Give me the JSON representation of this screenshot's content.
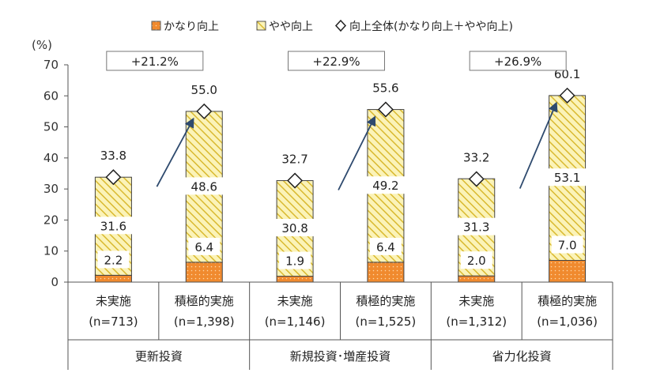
{
  "chart_data": {
    "type": "bar",
    "ylabel": "(%)",
    "ylim": [
      0,
      70
    ],
    "yticks": [
      0,
      10,
      20,
      30,
      40,
      50,
      60,
      70
    ],
    "grid": false,
    "legend_position": "top",
    "legend": [
      {
        "key": "kanari",
        "label": "かなり向上",
        "color": "#f28b30"
      },
      {
        "key": "yaya",
        "label": "やや向上",
        "color": "#f5e27a"
      },
      {
        "key": "total",
        "label": "向上全体(かなり向上＋やや向上)"
      }
    ],
    "groups": [
      {
        "name": "更新投資",
        "change": "+21.2%",
        "bars": [
          {
            "label": "未実施",
            "n": "(n=713)",
            "kanari": 2.2,
            "yaya": 31.6,
            "total": 33.8,
            "kanari_label": "2.2",
            "yaya_label": "31.6",
            "total_label": "33.8"
          },
          {
            "label": "積極的実施",
            "n": "(n=1,398)",
            "kanari": 6.4,
            "yaya": 48.6,
            "total": 55.0,
            "kanari_label": "6.4",
            "yaya_label": "48.6",
            "total_label": "55.0"
          }
        ]
      },
      {
        "name": "新規投資･増産投資",
        "change": "+22.9%",
        "bars": [
          {
            "label": "未実施",
            "n": "(n=1,146)",
            "kanari": 1.9,
            "yaya": 30.8,
            "total": 32.7,
            "kanari_label": "1.9",
            "yaya_label": "30.8",
            "total_label": "32.7"
          },
          {
            "label": "積極的実施",
            "n": "(n=1,525)",
            "kanari": 6.4,
            "yaya": 49.2,
            "total": 55.6,
            "kanari_label": "6.4",
            "yaya_label": "49.2",
            "total_label": "55.6"
          }
        ]
      },
      {
        "name": "省力化投資",
        "change": "+26.9%",
        "bars": [
          {
            "label": "未実施",
            "n": "(n=1,312)",
            "kanari": 2.0,
            "yaya": 31.3,
            "total": 33.2,
            "kanari_label": "2.0",
            "yaya_label": "31.3",
            "total_label": "33.2"
          },
          {
            "label": "積極的実施",
            "n": "(n=1,036)",
            "kanari": 7.0,
            "yaya": 53.1,
            "total": 60.1,
            "kanari_label": "7.0",
            "yaya_label": "53.1",
            "total_label": "60.1"
          }
        ]
      }
    ]
  }
}
